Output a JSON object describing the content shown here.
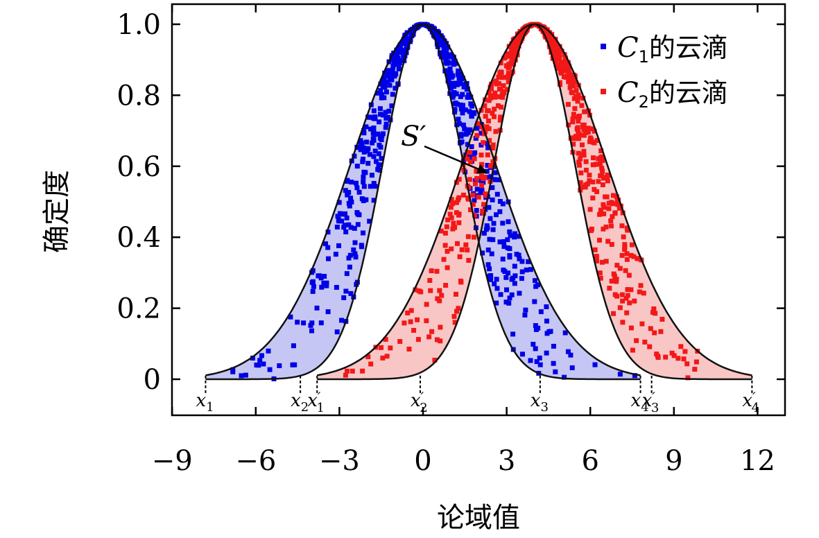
{
  "chart_data": {
    "type": "scatter",
    "xlabel": "论域值",
    "ylabel": "确定度",
    "xlim": [
      -9,
      12
    ],
    "ylim": [
      -0.12,
      1.05
    ],
    "xticks": [
      "−9",
      "−6",
      "−3",
      "0",
      "3",
      "6",
      "9",
      "12"
    ],
    "yticks": [
      "0",
      "0.2",
      "0.4",
      "0.6",
      "0.8",
      "1.0"
    ],
    "grid": false,
    "legend_position": "top-right",
    "series": [
      {
        "name_main": "C",
        "name_sub": "1",
        "name_suffix": "的云滴",
        "color": "#0000e6",
        "fill": "#c6c6f5",
        "Ex": 0,
        "En_inner": 1.45,
        "En_outer": 2.6,
        "drop_count": 700,
        "x_range": [
          -7.8,
          7.8
        ]
      },
      {
        "name_main": "C",
        "name_sub": "2",
        "name_suffix": "的云滴",
        "color": "#f21818",
        "fill": "#f9c6c6",
        "Ex": 4,
        "En_inner": 1.45,
        "En_outer": 2.6,
        "drop_count": 700,
        "x_range": [
          -3.8,
          11.8
        ]
      }
    ],
    "annotations": [
      {
        "text": "S′",
        "x": 2.4,
        "y": 0.585
      }
    ],
    "boundary_markers": [
      {
        "base": "x",
        "sub": "1",
        "prime": "",
        "x": -7.8
      },
      {
        "base": "x",
        "sub": "2",
        "prime": "",
        "x": -4.4
      },
      {
        "base": "x",
        "sub": "1",
        "prime": "′",
        "x": -3.8
      },
      {
        "base": "x",
        "sub": "2",
        "prime": "′",
        "x": -0.1
      },
      {
        "base": "x",
        "sub": "3",
        "prime": "",
        "x": 4.2
      },
      {
        "base": "x",
        "sub": "4",
        "prime": "",
        "x": 7.8
      },
      {
        "base": "x",
        "sub": "3",
        "prime": "′",
        "x": 8.2
      },
      {
        "base": "x",
        "sub": "4",
        "prime": "′",
        "x": 11.8
      }
    ]
  }
}
